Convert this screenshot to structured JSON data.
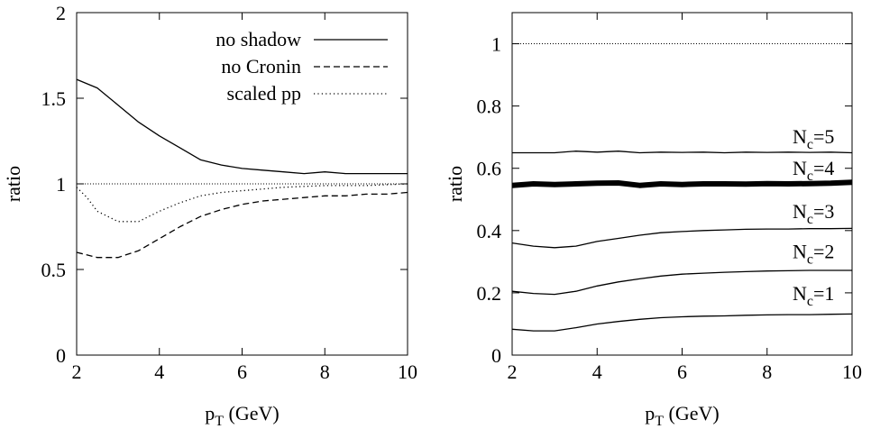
{
  "chart_data": [
    {
      "type": "line",
      "title": "",
      "xlabel": "p",
      "xlabel_sub": "T",
      "xlabel_unit": " (GeV)",
      "ylabel": "ratio",
      "xlim": [
        2,
        10
      ],
      "ylim": [
        0,
        2
      ],
      "xticks": [
        2,
        4,
        6,
        8,
        10
      ],
      "yticks": [
        0,
        0.5,
        1,
        1.5,
        2
      ],
      "xtick_labels": [
        "2",
        "4",
        "6",
        "8",
        "10"
      ],
      "ytick_labels": [
        "0",
        "0.5",
        "1",
        "1.5",
        "2"
      ],
      "grid": false,
      "legend_position": "top-right",
      "reference_line": {
        "y": 1,
        "style": "dotted"
      },
      "series": [
        {
          "name": "no shadow",
          "style": "solid",
          "x": [
            2,
            2.5,
            3,
            3.5,
            4,
            4.5,
            5,
            5.5,
            6,
            6.5,
            7,
            7.5,
            8,
            8.5,
            9,
            9.5,
            10
          ],
          "y": [
            1.61,
            1.56,
            1.46,
            1.36,
            1.28,
            1.21,
            1.14,
            1.11,
            1.09,
            1.08,
            1.07,
            1.06,
            1.07,
            1.06,
            1.06,
            1.06,
            1.06
          ]
        },
        {
          "name": "no Cronin",
          "style": "dashed",
          "x": [
            2,
            2.5,
            3,
            3.5,
            4,
            4.5,
            5,
            5.5,
            6,
            6.5,
            7,
            7.5,
            8,
            8.5,
            9,
            9.5,
            10
          ],
          "y": [
            0.6,
            0.57,
            0.57,
            0.61,
            0.68,
            0.75,
            0.81,
            0.85,
            0.88,
            0.9,
            0.91,
            0.92,
            0.93,
            0.93,
            0.94,
            0.94,
            0.95
          ]
        },
        {
          "name": "scaled  pp",
          "style": "dotted",
          "x": [
            2,
            2.25,
            2.5,
            3,
            3.5,
            4,
            4.5,
            5,
            5.5,
            6,
            7,
            8,
            9,
            10
          ],
          "y": [
            0.98,
            0.92,
            0.84,
            0.78,
            0.78,
            0.84,
            0.89,
            0.93,
            0.95,
            0.96,
            0.98,
            0.99,
            0.99,
            1.0
          ]
        }
      ]
    },
    {
      "type": "line",
      "title": "",
      "xlabel": "p",
      "xlabel_sub": "T",
      "xlabel_unit": " (GeV)",
      "ylabel": "ratio",
      "xlim": [
        2,
        10
      ],
      "ylim": [
        0,
        1.1
      ],
      "xticks": [
        2,
        4,
        6,
        8,
        10
      ],
      "yticks": [
        0,
        0.2,
        0.4,
        0.6,
        0.8,
        1
      ],
      "xtick_labels": [
        "2",
        "4",
        "6",
        "8",
        "10"
      ],
      "ytick_labels": [
        "0",
        "0.2",
        "0.4",
        "0.6",
        "0.8",
        "1"
      ],
      "grid": false,
      "reference_line": {
        "y": 1,
        "style": "dotted"
      },
      "series": [
        {
          "name": "N=5",
          "label_main": "N",
          "label_sub": "c",
          "label_rest": "=5",
          "style": "solid",
          "bold": false,
          "x": [
            2,
            2.5,
            3,
            3.5,
            4,
            4.5,
            5,
            5.5,
            6,
            6.5,
            7,
            7.5,
            8,
            8.5,
            9,
            9.5,
            10
          ],
          "y": [
            0.65,
            0.65,
            0.65,
            0.655,
            0.652,
            0.655,
            0.65,
            0.652,
            0.651,
            0.652,
            0.65,
            0.652,
            0.651,
            0.652,
            0.651,
            0.652,
            0.65
          ]
        },
        {
          "name": "N=4",
          "label_main": "N",
          "label_sub": "c",
          "label_rest": "=4",
          "style": "solid",
          "bold": true,
          "x": [
            2,
            2.5,
            3,
            3.5,
            4,
            4.5,
            5,
            5.5,
            6,
            6.5,
            7,
            7.5,
            8,
            8.5,
            9,
            9.5,
            10
          ],
          "y": [
            0.545,
            0.55,
            0.548,
            0.55,
            0.552,
            0.553,
            0.545,
            0.55,
            0.548,
            0.55,
            0.55,
            0.549,
            0.551,
            0.55,
            0.551,
            0.552,
            0.555
          ]
        },
        {
          "name": "N=3",
          "label_main": "N",
          "label_sub": "c",
          "label_rest": "=3",
          "style": "solid",
          "bold": false,
          "x": [
            2,
            2.5,
            3,
            3.5,
            4,
            4.5,
            5,
            5.5,
            6,
            6.5,
            7,
            7.5,
            8,
            8.5,
            9,
            9.5,
            10
          ],
          "y": [
            0.36,
            0.35,
            0.345,
            0.35,
            0.365,
            0.375,
            0.385,
            0.393,
            0.397,
            0.4,
            0.402,
            0.404,
            0.405,
            0.405,
            0.406,
            0.406,
            0.407
          ]
        },
        {
          "name": "N=2",
          "label_main": "N",
          "label_sub": "c",
          "label_rest": "=2",
          "style": "solid",
          "bold": false,
          "x": [
            2,
            2.5,
            3,
            3.5,
            4,
            4.5,
            5,
            5.5,
            6,
            6.5,
            7,
            7.5,
            8,
            8.5,
            9,
            9.5,
            10
          ],
          "y": [
            0.205,
            0.198,
            0.195,
            0.205,
            0.222,
            0.235,
            0.245,
            0.254,
            0.26,
            0.263,
            0.266,
            0.268,
            0.27,
            0.271,
            0.272,
            0.272,
            0.272
          ]
        },
        {
          "name": "N=1",
          "label_main": "N",
          "label_sub": "c",
          "label_rest": "=1",
          "style": "solid",
          "bold": false,
          "x": [
            2,
            2.5,
            3,
            3.5,
            4,
            4.5,
            5,
            5.5,
            6,
            6.5,
            7,
            7.5,
            8,
            8.5,
            9,
            9.5,
            10
          ],
          "y": [
            0.083,
            0.078,
            0.078,
            0.088,
            0.1,
            0.108,
            0.115,
            0.12,
            0.123,
            0.125,
            0.126,
            0.128,
            0.129,
            0.13,
            0.13,
            0.131,
            0.132
          ]
        }
      ]
    }
  ]
}
